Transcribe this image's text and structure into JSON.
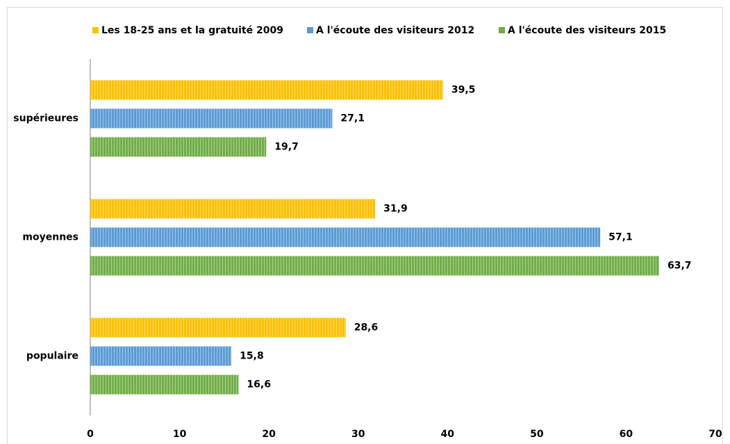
{
  "chart_data": {
    "type": "bar",
    "orientation": "horizontal",
    "categories": [
      "supérieures",
      "moyennes",
      "populaire"
    ],
    "series": [
      {
        "name": "Les 18-25 ans et la gratuité 2009",
        "color": "#FFC000",
        "values": [
          39.5,
          31.9,
          28.6
        ],
        "value_labels": [
          "39,5",
          "31,9",
          "28,6"
        ]
      },
      {
        "name": "A l'écoute des visiteurs 2012",
        "color": "#5B9BD5",
        "values": [
          27.1,
          57.1,
          15.8
        ],
        "value_labels": [
          "27,1",
          "57,1",
          "15,8"
        ]
      },
      {
        "name": "A l'écoute des visiteurs 2015",
        "color": "#70AD47",
        "values": [
          19.7,
          63.7,
          16.6
        ],
        "value_labels": [
          "19,7",
          "63,7",
          "16,6"
        ]
      }
    ],
    "xlim": [
      0,
      70
    ],
    "xticks": [
      0,
      10,
      20,
      30,
      40,
      50,
      60,
      70
    ],
    "legend": "top"
  }
}
